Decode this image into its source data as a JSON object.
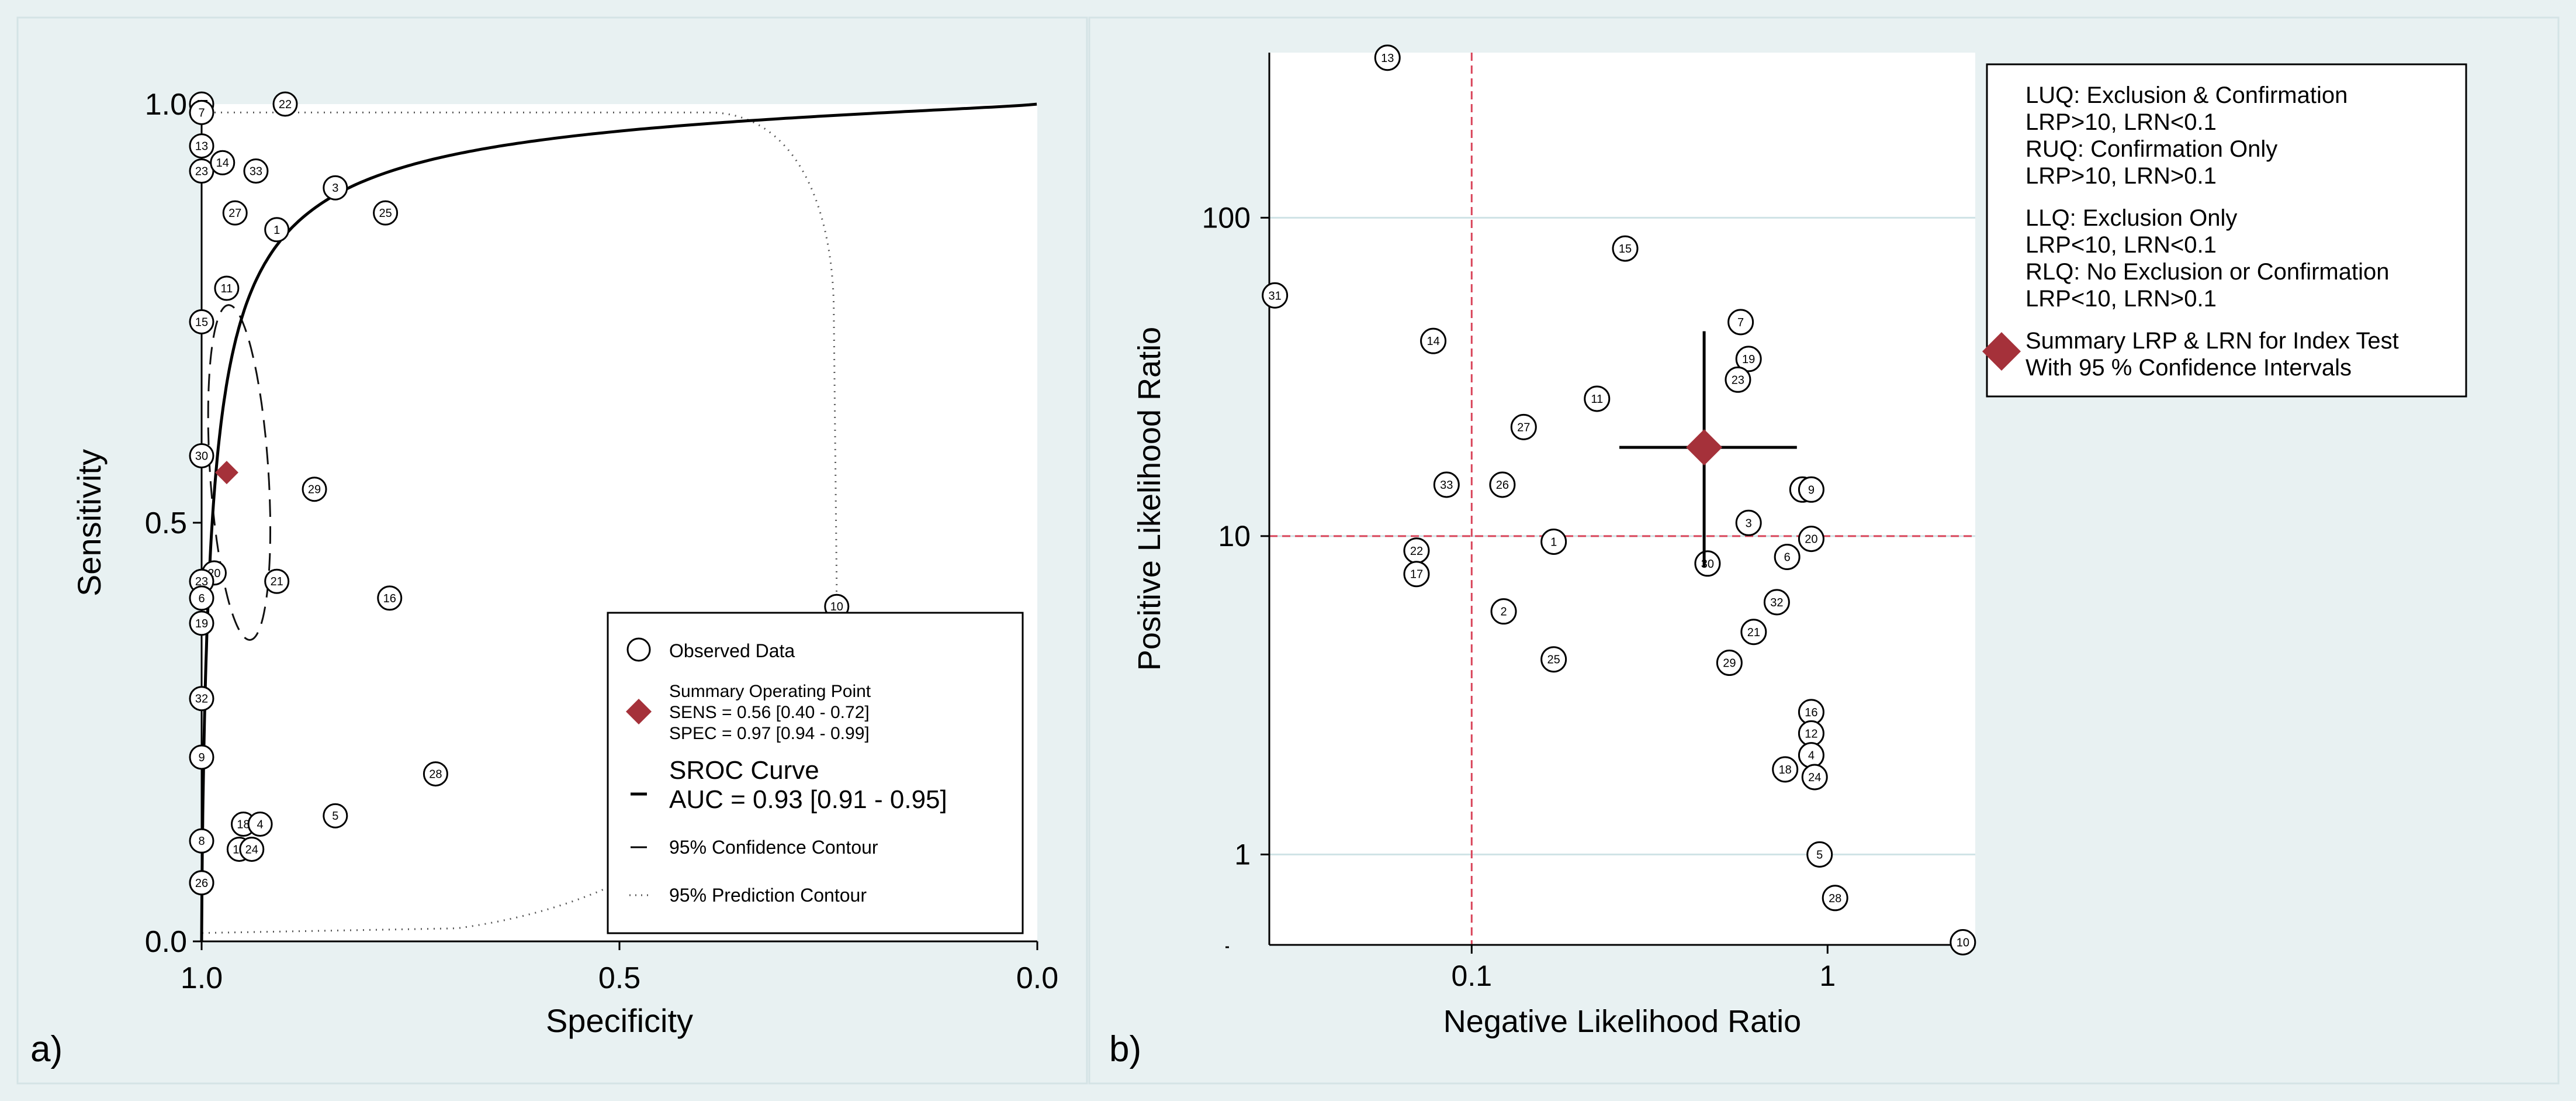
{
  "colors": {
    "background": "#e8f1f2",
    "plot_bg": "#ffffff",
    "marker": "#a5313a",
    "reference_line": "#d9455a",
    "gridline": "#cfe3e6"
  },
  "chart_data": [
    {
      "panel_label": "a)",
      "type": "scatter",
      "title": "",
      "xlabel": "Specificity",
      "ylabel": "Sensitivity",
      "xlim": [
        1.0,
        0.0
      ],
      "ylim": [
        0.0,
        1.0
      ],
      "xticks": [
        "1.0",
        "0.5",
        "0.0"
      ],
      "yticks": [
        "0.0",
        "0.5",
        "1.0"
      ],
      "legend": {
        "placement": "bottom-right",
        "observed": "Observed Data",
        "summary_title": "Summary Operating Point",
        "summary_sens": "SENS = 0.56 [0.40 - 0.72]",
        "summary_spec": "SPEC = 0.97 [0.94 - 0.99]",
        "sroc_title": "SROC Curve",
        "sroc_auc": "AUC = 0.93 [0.91 - 0.95]",
        "confidence": "95% Confidence Contour",
        "prediction": "95% Prediction Contour"
      },
      "summary_point": {
        "specificity": 0.97,
        "sensitivity": 0.56
      },
      "confidence_contour": {
        "specificity": [
          0.99,
          0.92
        ],
        "sensitivity": [
          0.36,
          0.76
        ]
      },
      "prediction_contour": "dotted region bounded near specificity 1.0 and 0.24",
      "studies": [
        {
          "id": "17",
          "spec": 1.0,
          "sens": 1.0
        },
        {
          "id": "7",
          "spec": 1.0,
          "sens": 0.99
        },
        {
          "id": "22",
          "spec": 0.9,
          "sens": 1.0
        },
        {
          "id": "13",
          "spec": 1.0,
          "sens": 0.95
        },
        {
          "id": "23",
          "spec": 1.0,
          "sens": 0.92
        },
        {
          "id": "14",
          "spec": 0.975,
          "sens": 0.93
        },
        {
          "id": "33",
          "spec": 0.935,
          "sens": 0.92
        },
        {
          "id": "3",
          "spec": 0.84,
          "sens": 0.9
        },
        {
          "id": "27",
          "spec": 0.96,
          "sens": 0.87
        },
        {
          "id": "25",
          "spec": 0.78,
          "sens": 0.87
        },
        {
          "id": "1",
          "spec": 0.91,
          "sens": 0.85
        },
        {
          "id": "11",
          "spec": 0.97,
          "sens": 0.78
        },
        {
          "id": "15",
          "spec": 1.0,
          "sens": 0.74
        },
        {
          "id": "30",
          "spec": 1.0,
          "sens": 0.58
        },
        {
          "id": "29",
          "spec": 0.865,
          "sens": 0.54
        },
        {
          "id": "20",
          "spec": 0.985,
          "sens": 0.44
        },
        {
          "id": "21",
          "spec": 0.91,
          "sens": 0.43
        },
        {
          "id": "23b",
          "spec": 1.0,
          "sens": 0.43
        },
        {
          "id": "6",
          "spec": 1.0,
          "sens": 0.41
        },
        {
          "id": "16",
          "spec": 0.775,
          "sens": 0.41
        },
        {
          "id": "19",
          "spec": 1.0,
          "sens": 0.38
        },
        {
          "id": "10",
          "spec": 0.24,
          "sens": 0.4
        },
        {
          "id": "32",
          "spec": 1.0,
          "sens": 0.29
        },
        {
          "id": "9",
          "spec": 1.0,
          "sens": 0.22
        },
        {
          "id": "28",
          "spec": 0.72,
          "sens": 0.2
        },
        {
          "id": "5",
          "spec": 0.84,
          "sens": 0.15
        },
        {
          "id": "18",
          "spec": 0.95,
          "sens": 0.14
        },
        {
          "id": "4",
          "spec": 0.93,
          "sens": 0.14
        },
        {
          "id": "8",
          "spec": 1.0,
          "sens": 0.12
        },
        {
          "id": "12",
          "spec": 0.955,
          "sens": 0.11
        },
        {
          "id": "24",
          "spec": 0.94,
          "sens": 0.11
        },
        {
          "id": "2",
          "spec": 1.0,
          "sens": 0.07
        },
        {
          "id": "26",
          "spec": 1.0,
          "sens": 0.07
        }
      ]
    },
    {
      "panel_label": "b)",
      "type": "scatter",
      "title": "",
      "xlabel": "Negative Likelihood Ratio",
      "ylabel": "Positive Likelihood Ratio",
      "xscale": "log",
      "yscale": "log",
      "xlim": [
        0.027,
        2.6
      ],
      "ylim": [
        0.52,
        330
      ],
      "xticks": [
        "0.1",
        "1"
      ],
      "yticks": [
        "1",
        "10",
        "100"
      ],
      "reference_lines": {
        "x": 0.1,
        "y": 10
      },
      "legend": {
        "placement": "top-right",
        "luq_title": "LUQ: Exclusion & Confirmation",
        "luq_rule": "LRP>10, LRN<0.1",
        "ruq_title": "RUQ: Confirmation Only",
        "ruq_rule": "LRP>10, LRN>0.1",
        "llq_title": "LLQ: Exclusion Only",
        "llq_rule": "LRP<10, LRN<0.1",
        "rlq_title": "RLQ: No Exclusion or Confirmation",
        "rlq_rule": "LRP<10, LRN>0.1",
        "summary_title": "Summary LRP & LRN for Index Test",
        "summary_ci": "With 95 % Confidence Intervals"
      },
      "summary_point": {
        "lrn": 0.45,
        "lrp": 19,
        "lrn_ci": [
          0.26,
          0.82
        ],
        "lrp_ci": [
          8,
          44
        ]
      },
      "studies": [
        {
          "id": "13",
          "lrn": 0.058,
          "lrp": 318
        },
        {
          "id": "31",
          "lrn": 0.028,
          "lrp": 57
        },
        {
          "id": "14",
          "lrn": 0.078,
          "lrp": 41
        },
        {
          "id": "15",
          "lrn": 0.27,
          "lrp": 80
        },
        {
          "id": "7",
          "lrn": 0.57,
          "lrp": 47
        },
        {
          "id": "19",
          "lrn": 0.6,
          "lrp": 36
        },
        {
          "id": "23",
          "lrn": 0.56,
          "lrp": 31
        },
        {
          "id": "11",
          "lrn": 0.225,
          "lrp": 27
        },
        {
          "id": "27",
          "lrn": 0.14,
          "lrp": 22
        },
        {
          "id": "33",
          "lrn": 0.085,
          "lrp": 14.5
        },
        {
          "id": "26",
          "lrn": 0.122,
          "lrp": 14.5
        },
        {
          "id": "8",
          "lrn": 0.85,
          "lrp": 14
        },
        {
          "id": "9",
          "lrn": 0.9,
          "lrp": 14
        },
        {
          "id": "3",
          "lrn": 0.6,
          "lrp": 11
        },
        {
          "id": "20",
          "lrn": 0.9,
          "lrp": 9.8
        },
        {
          "id": "1",
          "lrn": 0.17,
          "lrp": 9.6
        },
        {
          "id": "22",
          "lrn": 0.07,
          "lrp": 9
        },
        {
          "id": "6",
          "lrn": 0.77,
          "lrp": 8.6
        },
        {
          "id": "30",
          "lrn": 0.46,
          "lrp": 8.2
        },
        {
          "id": "17",
          "lrn": 0.07,
          "lrp": 7.6
        },
        {
          "id": "32",
          "lrn": 0.72,
          "lrp": 6.2
        },
        {
          "id": "2",
          "lrn": 0.123,
          "lrp": 5.8
        },
        {
          "id": "21",
          "lrn": 0.62,
          "lrp": 5
        },
        {
          "id": "25",
          "lrn": 0.17,
          "lrp": 4.1
        },
        {
          "id": "29",
          "lrn": 0.53,
          "lrp": 4.0
        },
        {
          "id": "16",
          "lrn": 0.9,
          "lrp": 2.8
        },
        {
          "id": "12",
          "lrn": 0.9,
          "lrp": 2.4
        },
        {
          "id": "4",
          "lrn": 0.9,
          "lrp": 2.05
        },
        {
          "id": "18",
          "lrn": 0.76,
          "lrp": 1.85
        },
        {
          "id": "24",
          "lrn": 0.92,
          "lrp": 1.75
        },
        {
          "id": "5",
          "lrn": 0.95,
          "lrp": 1.0
        },
        {
          "id": "28",
          "lrn": 1.05,
          "lrp": 0.73
        },
        {
          "id": "10",
          "lrn": 2.4,
          "lrp": 0.53
        }
      ]
    }
  ]
}
